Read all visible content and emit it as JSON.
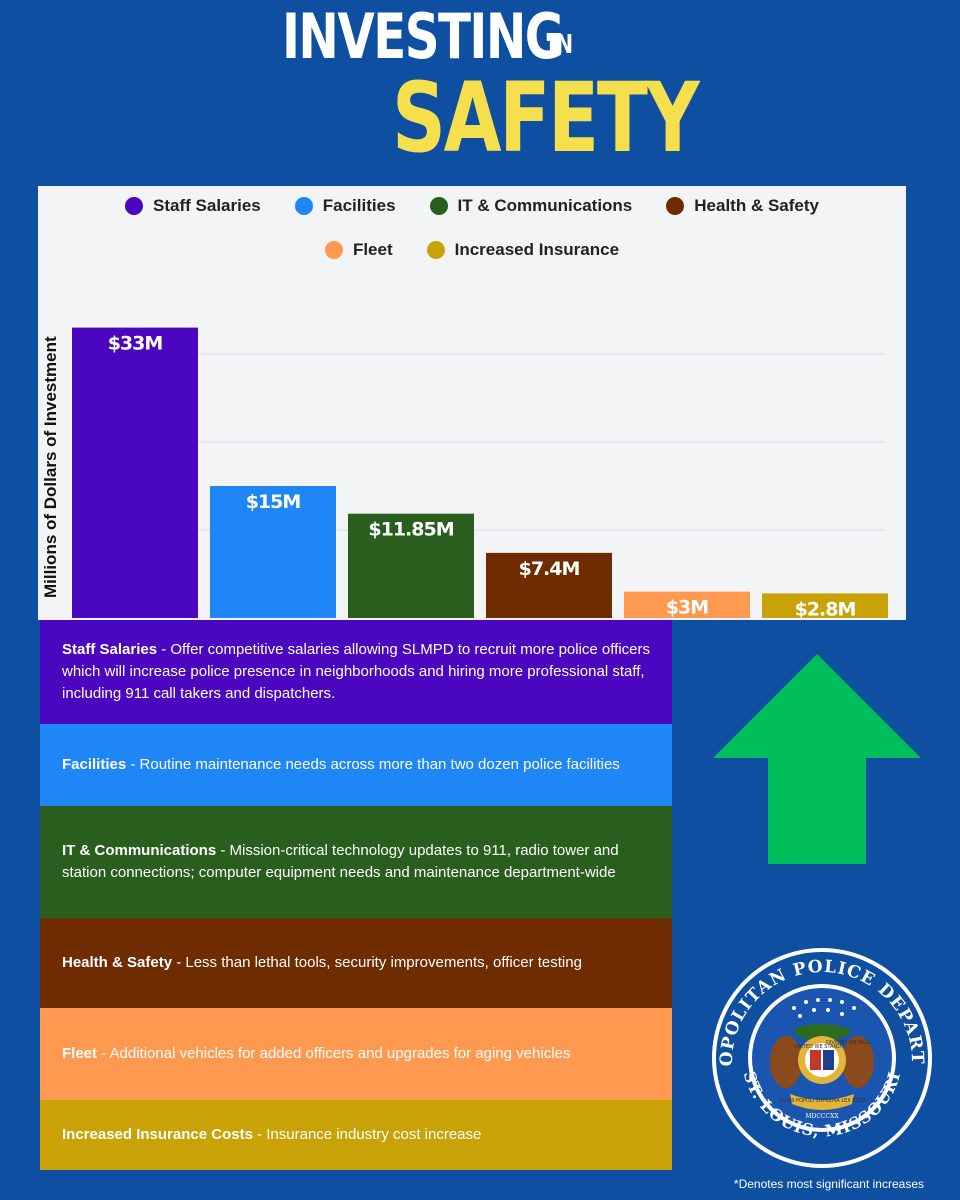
{
  "header": {
    "title_line1": "INVESTING",
    "title_in": "IN",
    "title_line2": "SAFETY"
  },
  "colors": {
    "background": "#0e4fa1",
    "title_yellow": "#f5df4d",
    "staff_salaries": "#4b07c0",
    "facilities": "#1f86f7",
    "it_communications": "#2a5e1f",
    "health_safety": "#6f2c00",
    "fleet": "#ff9950",
    "increased_insurance": "#c9a207",
    "arrow": "#00bf5a"
  },
  "chart_data": {
    "type": "bar",
    "ylabel": "Millions of Dollars of Investment",
    "categories": [
      "Staff Salaries",
      "Facilities",
      "IT & Communications",
      "Health & Safety",
      "Fleet",
      "Increased Insurance"
    ],
    "values": [
      33,
      15,
      11.85,
      7.4,
      3,
      2.8
    ],
    "data_labels": [
      "$33M",
      "$15M",
      "$11.85M",
      "$7.4M",
      "$3M",
      "$2.8M"
    ],
    "ylim": [
      0,
      40
    ],
    "grid": true,
    "legend": {
      "placement": "top",
      "entries": [
        "Staff Salaries",
        "Facilities",
        "IT & Communications",
        "Health & Safety",
        "Fleet",
        "Increased Insurance"
      ]
    }
  },
  "descriptions": [
    {
      "title": "Staff Salaries",
      "text": " - Offer competitive salaries allowing SLMPD to recruit more police officers which will increase police presence in neighborhoods and hiring more professional staff, including 911 call takers and dispatchers."
    },
    {
      "title": "Facilities",
      "text": " - Routine maintenance needs across more than two dozen police facilities"
    },
    {
      "title": "IT & Communications",
      "text": " - Mission-critical technology updates to 911, radio tower and station connections; computer equipment needs and maintenance department-wide"
    },
    {
      "title": "Health & Safety",
      "text": " - Less than lethal tools, security improvements, officer testing"
    },
    {
      "title": "Fleet",
      "text": " - Additional vehicles for added officers and upgrades for aging vehicles"
    },
    {
      "title": "Increased Insurance Costs",
      "text": " - Insurance industry cost increase"
    }
  ],
  "seal": {
    "outer_text": "METROPOLITAN POLICE DEPARTMENT",
    "bottom_text": "ST. LOUIS, MISSOURI",
    "banner_left": "UNITED WE STAND",
    "banner_right": "DIVIDED WE FALL",
    "motto": "SALUS POPULI SUPREMA LEX ESTO",
    "year": "MDCCCXX"
  },
  "footnote": "*Denotes most significant increases"
}
